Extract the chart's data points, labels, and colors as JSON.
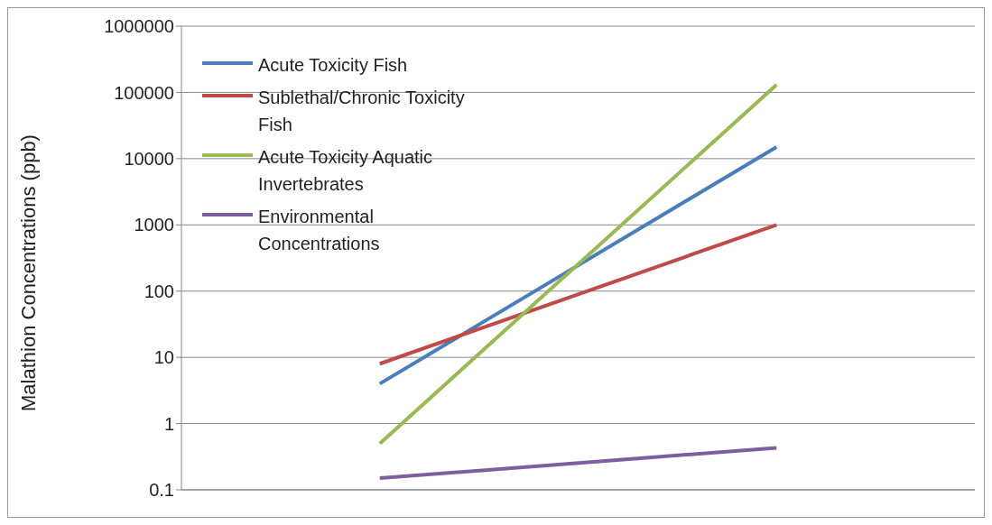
{
  "chart_data": {
    "type": "line",
    "ylabel": "Malathion Concentrations (ppb)",
    "categories": [
      null,
      null
    ],
    "series": [
      {
        "name": "Acute Toxicity Fish",
        "color": "#4a7ebb",
        "values": [
          4,
          15000
        ]
      },
      {
        "name": "Sublethal/Chronic Toxicity Fish",
        "color": "#be4b48",
        "values": [
          8,
          1000
        ]
      },
      {
        "name": "Acute Toxicity Aquatic Invertebrates",
        "color": "#98b954",
        "values": [
          0.5,
          130000
        ]
      },
      {
        "name": "Environmental Concentrations",
        "color": "#7d5fa0",
        "values": [
          0.15,
          0.43
        ]
      }
    ],
    "log": true,
    "ylim": [
      0.1,
      1000000
    ],
    "yticks": [
      0.1,
      1,
      10,
      100,
      1000,
      10000,
      100000,
      1000000
    ],
    "grid": "y",
    "legend": "top left",
    "marker": "none",
    "line_style": "solid"
  }
}
